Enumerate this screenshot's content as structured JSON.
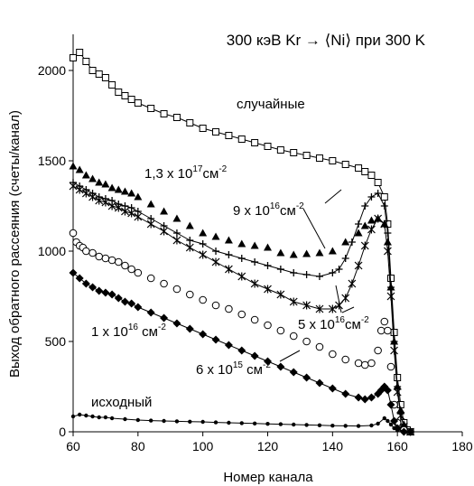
{
  "chart_data": {
    "type": "scatter",
    "title": "300 кэВ Kr → ⟨Ni⟩ при 300 K",
    "xlabel": "Номер канала",
    "ylabel": "Выход обратного рассеяния (счеты/канал)",
    "xlim": [
      60,
      180
    ],
    "ylim": [
      0,
      2200
    ],
    "x_ticks": [
      "60",
      "80",
      "100",
      "120",
      "140",
      "160",
      "180"
    ],
    "y_ticks": [
      "0",
      "500",
      "1000",
      "1500",
      "2000"
    ],
    "grid": false,
    "legend": "none",
    "series": [
      {
        "name": "случайные",
        "marker": "open-square",
        "line": true,
        "points": [
          [
            60,
            2070
          ],
          [
            62,
            2100
          ],
          [
            64,
            2050
          ],
          [
            66,
            2000
          ],
          [
            68,
            1980
          ],
          [
            70,
            1960
          ],
          [
            72,
            1920
          ],
          [
            74,
            1880
          ],
          [
            76,
            1860
          ],
          [
            78,
            1840
          ],
          [
            80,
            1820
          ],
          [
            84,
            1790
          ],
          [
            88,
            1760
          ],
          [
            92,
            1740
          ],
          [
            96,
            1710
          ],
          [
            100,
            1680
          ],
          [
            104,
            1660
          ],
          [
            108,
            1640
          ],
          [
            112,
            1620
          ],
          [
            116,
            1600
          ],
          [
            120,
            1580
          ],
          [
            124,
            1560
          ],
          [
            128,
            1545
          ],
          [
            132,
            1530
          ],
          [
            136,
            1515
          ],
          [
            140,
            1500
          ],
          [
            144,
            1480
          ],
          [
            148,
            1460
          ],
          [
            150,
            1440
          ],
          [
            152,
            1420
          ],
          [
            154,
            1380
          ],
          [
            156,
            1300
          ],
          [
            157,
            1150
          ],
          [
            158,
            850
          ],
          [
            159,
            550
          ],
          [
            160,
            300
          ],
          [
            161,
            150
          ],
          [
            162,
            50
          ],
          [
            163,
            10
          ],
          [
            164,
            0
          ]
        ]
      },
      {
        "name": "1,3 x 10¹⁷ см⁻²",
        "marker": "filled-triangle",
        "line": false,
        "points": [
          [
            60,
            1470
          ],
          [
            62,
            1450
          ],
          [
            64,
            1420
          ],
          [
            66,
            1400
          ],
          [
            68,
            1380
          ],
          [
            70,
            1370
          ],
          [
            72,
            1350
          ],
          [
            74,
            1340
          ],
          [
            76,
            1330
          ],
          [
            78,
            1320
          ],
          [
            80,
            1300
          ],
          [
            84,
            1260
          ],
          [
            88,
            1220
          ],
          [
            92,
            1180
          ],
          [
            96,
            1140
          ],
          [
            100,
            1100
          ],
          [
            104,
            1080
          ],
          [
            108,
            1060
          ],
          [
            112,
            1040
          ],
          [
            116,
            1030
          ],
          [
            120,
            1020
          ],
          [
            124,
            990
          ],
          [
            128,
            980
          ],
          [
            132,
            985
          ],
          [
            136,
            990
          ],
          [
            140,
            1000
          ],
          [
            144,
            1050
          ],
          [
            148,
            1100
          ],
          [
            150,
            1140
          ],
          [
            152,
            1170
          ],
          [
            154,
            1180
          ],
          [
            156,
            1150
          ],
          [
            157,
            1050
          ],
          [
            158,
            800
          ],
          [
            159,
            500
          ],
          [
            160,
            250
          ],
          [
            161,
            120
          ],
          [
            162,
            40
          ],
          [
            164,
            0
          ]
        ]
      },
      {
        "name": "9 x 10¹⁶см⁻²",
        "marker": "plus",
        "line": true,
        "points": [
          [
            60,
            1380
          ],
          [
            62,
            1360
          ],
          [
            64,
            1340
          ],
          [
            66,
            1320
          ],
          [
            68,
            1300
          ],
          [
            70,
            1290
          ],
          [
            72,
            1280
          ],
          [
            74,
            1260
          ],
          [
            76,
            1250
          ],
          [
            78,
            1240
          ],
          [
            80,
            1220
          ],
          [
            84,
            1180
          ],
          [
            88,
            1140
          ],
          [
            92,
            1100
          ],
          [
            96,
            1060
          ],
          [
            100,
            1040
          ],
          [
            104,
            1000
          ],
          [
            108,
            980
          ],
          [
            112,
            960
          ],
          [
            116,
            940
          ],
          [
            120,
            920
          ],
          [
            124,
            900
          ],
          [
            128,
            880
          ],
          [
            132,
            870
          ],
          [
            136,
            860
          ],
          [
            140,
            880
          ],
          [
            142,
            900
          ],
          [
            144,
            960
          ],
          [
            146,
            1050
          ],
          [
            148,
            1150
          ],
          [
            150,
            1250
          ],
          [
            152,
            1300
          ],
          [
            154,
            1320
          ],
          [
            156,
            1250
          ],
          [
            157,
            1100
          ],
          [
            158,
            800
          ],
          [
            159,
            500
          ],
          [
            160,
            250
          ],
          [
            161,
            100
          ],
          [
            162,
            30
          ],
          [
            164,
            0
          ]
        ]
      },
      {
        "name": "5 x 10¹⁶см⁻²",
        "marker": "asterisk",
        "line": true,
        "points": [
          [
            60,
            1360
          ],
          [
            62,
            1340
          ],
          [
            64,
            1320
          ],
          [
            66,
            1300
          ],
          [
            68,
            1280
          ],
          [
            70,
            1270
          ],
          [
            72,
            1250
          ],
          [
            74,
            1240
          ],
          [
            76,
            1220
          ],
          [
            78,
            1210
          ],
          [
            80,
            1190
          ],
          [
            84,
            1150
          ],
          [
            88,
            1110
          ],
          [
            92,
            1060
          ],
          [
            96,
            1020
          ],
          [
            100,
            980
          ],
          [
            104,
            940
          ],
          [
            108,
            900
          ],
          [
            112,
            860
          ],
          [
            116,
            820
          ],
          [
            120,
            790
          ],
          [
            124,
            760
          ],
          [
            128,
            720
          ],
          [
            132,
            700
          ],
          [
            136,
            680
          ],
          [
            140,
            680
          ],
          [
            142,
            700
          ],
          [
            144,
            740
          ],
          [
            146,
            820
          ],
          [
            148,
            920
          ],
          [
            150,
            1030
          ],
          [
            152,
            1120
          ],
          [
            154,
            1180
          ],
          [
            156,
            1150
          ],
          [
            157,
            1000
          ],
          [
            158,
            750
          ],
          [
            159,
            450
          ],
          [
            160,
            220
          ],
          [
            161,
            90
          ],
          [
            162,
            30
          ],
          [
            164,
            0
          ]
        ]
      },
      {
        "name": "1 x 10¹⁶ см⁻²",
        "marker": "open-circle",
        "line": false,
        "points": [
          [
            60,
            1100
          ],
          [
            61,
            1050
          ],
          [
            62,
            1030
          ],
          [
            63,
            1020
          ],
          [
            64,
            1000
          ],
          [
            66,
            990
          ],
          [
            68,
            970
          ],
          [
            70,
            960
          ],
          [
            72,
            950
          ],
          [
            74,
            940
          ],
          [
            76,
            920
          ],
          [
            78,
            900
          ],
          [
            80,
            880
          ],
          [
            84,
            850
          ],
          [
            88,
            820
          ],
          [
            92,
            790
          ],
          [
            96,
            760
          ],
          [
            100,
            730
          ],
          [
            104,
            700
          ],
          [
            108,
            680
          ],
          [
            112,
            650
          ],
          [
            116,
            620
          ],
          [
            120,
            590
          ],
          [
            124,
            560
          ],
          [
            128,
            530
          ],
          [
            132,
            500
          ],
          [
            136,
            470
          ],
          [
            140,
            430
          ],
          [
            144,
            400
          ],
          [
            148,
            380
          ],
          [
            150,
            370
          ],
          [
            152,
            380
          ],
          [
            154,
            450
          ],
          [
            155,
            560
          ],
          [
            156,
            610
          ],
          [
            157,
            560
          ],
          [
            158,
            360
          ],
          [
            159,
            150
          ],
          [
            160,
            50
          ],
          [
            162,
            10
          ],
          [
            164,
            0
          ]
        ]
      },
      {
        "name": "6 x 10¹⁵ см⁻²",
        "marker": "filled-diamond",
        "line": true,
        "points": [
          [
            60,
            880
          ],
          [
            62,
            850
          ],
          [
            64,
            820
          ],
          [
            66,
            800
          ],
          [
            68,
            780
          ],
          [
            70,
            770
          ],
          [
            72,
            760
          ],
          [
            74,
            740
          ],
          [
            76,
            720
          ],
          [
            78,
            710
          ],
          [
            80,
            690
          ],
          [
            84,
            660
          ],
          [
            88,
            630
          ],
          [
            92,
            600
          ],
          [
            96,
            570
          ],
          [
            100,
            540
          ],
          [
            104,
            510
          ],
          [
            108,
            480
          ],
          [
            112,
            450
          ],
          [
            116,
            420
          ],
          [
            120,
            390
          ],
          [
            124,
            360
          ],
          [
            128,
            330
          ],
          [
            132,
            300
          ],
          [
            136,
            270
          ],
          [
            140,
            240
          ],
          [
            144,
            210
          ],
          [
            148,
            190
          ],
          [
            150,
            180
          ],
          [
            152,
            190
          ],
          [
            154,
            210
          ],
          [
            155,
            230
          ],
          [
            156,
            250
          ],
          [
            157,
            230
          ],
          [
            158,
            150
          ],
          [
            159,
            60
          ],
          [
            160,
            20
          ],
          [
            162,
            0
          ],
          [
            164,
            0
          ]
        ]
      },
      {
        "name": "исходный",
        "marker": "small-filled-circle",
        "line": true,
        "points": [
          [
            60,
            85
          ],
          [
            62,
            95
          ],
          [
            64,
            90
          ],
          [
            66,
            85
          ],
          [
            68,
            80
          ],
          [
            70,
            80
          ],
          [
            72,
            75
          ],
          [
            76,
            70
          ],
          [
            80,
            65
          ],
          [
            84,
            62
          ],
          [
            88,
            60
          ],
          [
            92,
            58
          ],
          [
            96,
            56
          ],
          [
            100,
            55
          ],
          [
            104,
            52
          ],
          [
            108,
            50
          ],
          [
            112,
            48
          ],
          [
            116,
            46
          ],
          [
            120,
            44
          ],
          [
            124,
            42
          ],
          [
            128,
            40
          ],
          [
            132,
            38
          ],
          [
            136,
            36
          ],
          [
            140,
            34
          ],
          [
            144,
            33
          ],
          [
            148,
            32
          ],
          [
            152,
            35
          ],
          [
            154,
            45
          ],
          [
            156,
            75
          ],
          [
            157,
            60
          ],
          [
            158,
            40
          ],
          [
            159,
            20
          ],
          [
            160,
            8
          ],
          [
            162,
            2
          ],
          [
            164,
            0
          ]
        ]
      }
    ],
    "annotations": [
      {
        "text_base": "1,3 x 10",
        "text_sup": "17",
        "text_unit": "см",
        "text_unit_sup": "-2"
      },
      {
        "text_base": "9 x 10",
        "text_sup": "16",
        "text_unit": "см",
        "text_unit_sup": "-2"
      },
      {
        "text_base": "5 x 10",
        "text_sup": "16",
        "text_unit": "см",
        "text_unit_sup": "-2"
      },
      {
        "text_base": "1 x 10",
        "text_sup": "16",
        "text_unit": " см",
        "text_unit_sup": "-2"
      },
      {
        "text_base": "6 x 10",
        "text_sup": "15",
        "text_unit": " см",
        "text_unit_sup": "-2"
      }
    ],
    "label_random": "случайные",
    "label_virgin": "исходный"
  }
}
